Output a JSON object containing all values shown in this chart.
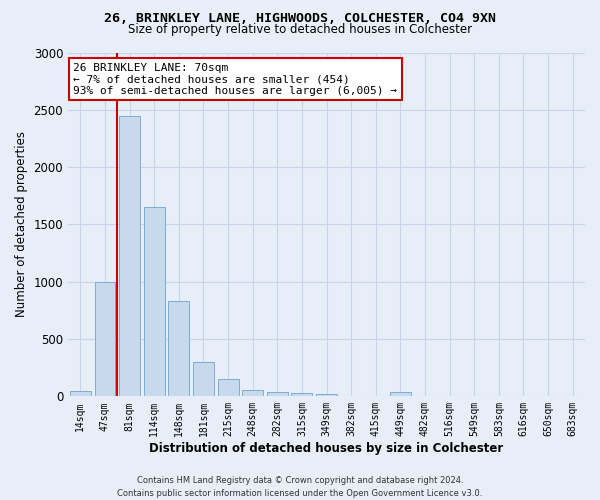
{
  "title_line1": "26, BRINKLEY LANE, HIGHWOODS, COLCHESTER, CO4 9XN",
  "title_line2": "Size of property relative to detached houses in Colchester",
  "xlabel": "Distribution of detached houses by size in Colchester",
  "ylabel": "Number of detached properties",
  "bar_labels": [
    "14sqm",
    "47sqm",
    "81sqm",
    "114sqm",
    "148sqm",
    "181sqm",
    "215sqm",
    "248sqm",
    "282sqm",
    "315sqm",
    "349sqm",
    "382sqm",
    "415sqm",
    "449sqm",
    "482sqm",
    "516sqm",
    "549sqm",
    "583sqm",
    "616sqm",
    "650sqm",
    "683sqm"
  ],
  "bar_values": [
    50,
    1000,
    2450,
    1650,
    830,
    300,
    150,
    55,
    40,
    30,
    20,
    0,
    0,
    35,
    0,
    0,
    0,
    0,
    0,
    0,
    0
  ],
  "bar_color": "#c8d9ee",
  "bar_edge_color": "#7aaed6",
  "vline_x_index": 1,
  "vline_color": "#cc0000",
  "annotation_text": "26 BRINKLEY LANE: 70sqm\n← 7% of detached houses are smaller (454)\n93% of semi-detached houses are larger (6,005) →",
  "annotation_box_color": "#ffffff",
  "annotation_border_color": "#cc0000",
  "ylim": [
    0,
    3000
  ],
  "footnote_line1": "Contains HM Land Registry data © Crown copyright and database right 2024.",
  "footnote_line2": "Contains public sector information licensed under the Open Government Licence v3.0.",
  "grid_color": "#c8d4e8",
  "background_color": "#e8eef8"
}
